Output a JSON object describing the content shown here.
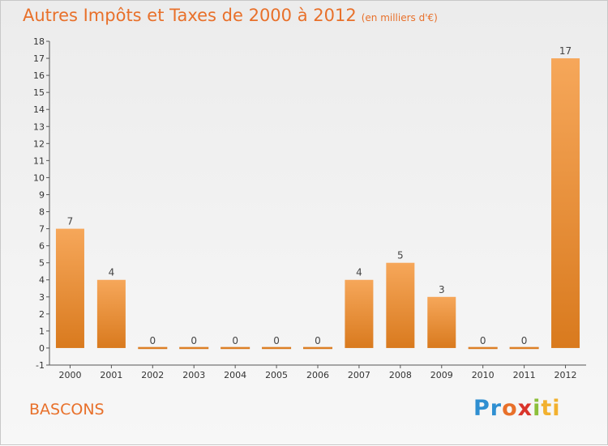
{
  "header": {
    "title": "Autres Impôts et Taxes de 2000 à 2012",
    "subtitle": "(en milliers d'€)"
  },
  "footer": {
    "commune": "BASCONS",
    "logo": [
      "Pr",
      "o",
      "x",
      "i",
      "ti"
    ]
  },
  "colors": {
    "bar_top": "#f6a75a",
    "bar_bottom": "#d97a1e",
    "accent": "#e8702a",
    "axis": "#555555"
  },
  "chart_data": {
    "type": "bar",
    "categories": [
      "2000",
      "2001",
      "2002",
      "2003",
      "2004",
      "2005",
      "2006",
      "2007",
      "2008",
      "2009",
      "2010",
      "2011",
      "2012"
    ],
    "values": [
      7,
      4,
      0,
      0,
      0,
      0,
      0,
      4,
      5,
      3,
      0,
      0,
      17
    ],
    "title": "Autres Impôts et Taxes de 2000 à 2012",
    "subtitle": "(en milliers d'€)",
    "xlabel": "",
    "ylabel": "",
    "ylim": [
      -1,
      18
    ],
    "yticks": [
      -1,
      0,
      1,
      2,
      3,
      4,
      5,
      6,
      7,
      8,
      9,
      10,
      11,
      12,
      13,
      14,
      15,
      16,
      17,
      18
    ],
    "ytick_labels": [
      "-1",
      "0",
      "1",
      "2",
      "3",
      "4",
      "5",
      "6",
      "7",
      "8",
      "9",
      "10",
      "11",
      "12",
      "13",
      "14",
      "15",
      "16",
      "17",
      "18"
    ],
    "data_labels": [
      "7",
      "4",
      "0",
      "0",
      "0",
      "0",
      "0",
      "4",
      "5",
      "3",
      "0",
      "0",
      "17"
    ],
    "grid": false,
    "legend": "none"
  }
}
